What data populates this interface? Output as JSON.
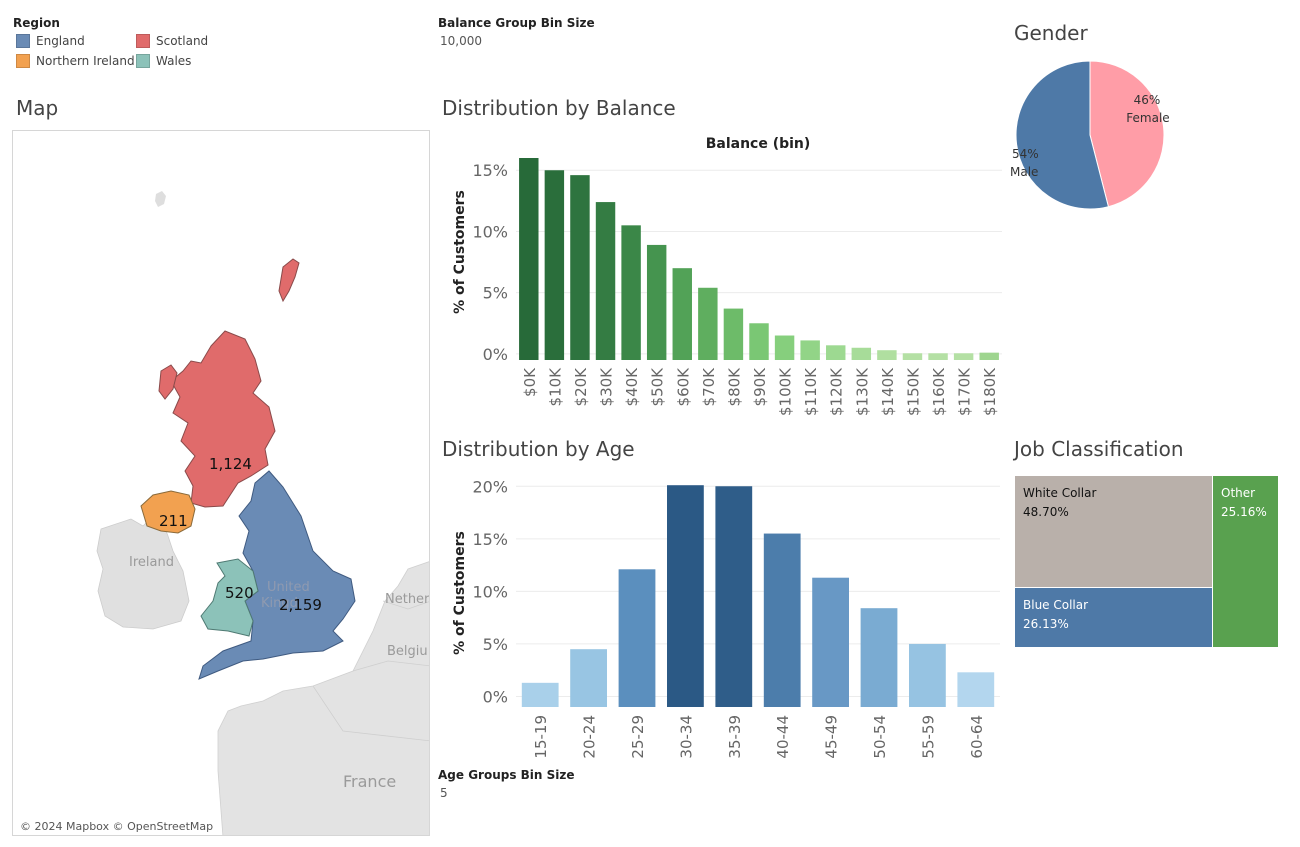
{
  "legend": {
    "title": "Region",
    "items": [
      {
        "label": "England",
        "color": "#6a8bb5"
      },
      {
        "label": "Scotland",
        "color": "#e06b6b"
      },
      {
        "label": "Northern Ireland",
        "color": "#f2a150"
      },
      {
        "label": "Wales",
        "color": "#8cc2b9"
      }
    ]
  },
  "params": {
    "balance_bin": {
      "title": "Balance Group Bin Size",
      "value": "10,000"
    },
    "age_bin": {
      "title": "Age Groups Bin Size",
      "value": "5"
    }
  },
  "map": {
    "title": "Map",
    "attribution": "© 2024 Mapbox © OpenStreetMap",
    "region_values": {
      "england": "2,159",
      "scotland": "1,124",
      "northern_ireland": "211",
      "wales": "520"
    },
    "place_labels": {
      "ireland": "Ireland",
      "uk_1": "United",
      "uk_2": "Kingd",
      "netherlands": "Nether",
      "belgium": "Belgiu",
      "france": "France"
    }
  },
  "balance_chart": {
    "title": "Distribution by Balance",
    "header": "Balance (bin)",
    "ylabel": "% of Customers"
  },
  "age_chart": {
    "title": "Distribution by Age",
    "ylabel": "% of Customers"
  },
  "gender": {
    "title": "Gender",
    "female_pct": "46%",
    "female_label": "Female",
    "male_pct": "54%",
    "male_label": "Male"
  },
  "job": {
    "title": "Job Classification",
    "cells": [
      {
        "label": "White Collar",
        "pct": "48.70%",
        "color": "#b9b0aa"
      },
      {
        "label": "Other",
        "pct": "25.16%",
        "color": "#59a14f"
      },
      {
        "label": "Blue Collar",
        "pct": "26.13%",
        "color": "#4e79a7"
      }
    ]
  },
  "chart_data": [
    {
      "type": "bar",
      "title": "Distribution by Balance",
      "xlabel": "Balance (bin)",
      "ylabel": "% of Customers",
      "categories": [
        "$0K",
        "$10K",
        "$20K",
        "$30K",
        "$40K",
        "$50K",
        "$60K",
        "$70K",
        "$80K",
        "$90K",
        "$100K",
        "$110K",
        "$120K",
        "$130K",
        "$140K",
        "$150K",
        "$160K",
        "$170K",
        "$180K"
      ],
      "values": [
        16.0,
        15.0,
        14.6,
        12.4,
        10.5,
        8.9,
        7.0,
        5.4,
        3.7,
        2.5,
        1.5,
        1.1,
        0.7,
        0.5,
        0.3,
        0.05,
        0.05,
        0.05,
        0.1
      ],
      "ylim": [
        -0.5,
        16
      ],
      "yticks": [
        "0%",
        "5%",
        "10%",
        "15%"
      ],
      "colors": [
        "#276a39",
        "#2a6e3b",
        "#2e743f",
        "#347c43",
        "#3b8748",
        "#45944f",
        "#52a257",
        "#5fae5f",
        "#6dbb69",
        "#7ac774",
        "#86cf7d",
        "#92d487",
        "#9dd991",
        "#a7dc99",
        "#b0dfa0",
        "#b4e0a4",
        "#b4e0a4",
        "#b4e0a4",
        "#9ed58f"
      ],
      "grid": true
    },
    {
      "type": "bar",
      "title": "Distribution by Age",
      "ylabel": "% of Customers",
      "categories": [
        "15-19",
        "20-24",
        "25-29",
        "30-34",
        "35-39",
        "40-44",
        "45-49",
        "50-54",
        "55-59",
        "60-64"
      ],
      "values": [
        1.3,
        4.5,
        12.1,
        20.1,
        20.0,
        15.5,
        11.3,
        8.4,
        5.0,
        2.3
      ],
      "ylim": [
        -1,
        20.5
      ],
      "yticks": [
        "0%",
        "5%",
        "10%",
        "15%",
        "20%"
      ],
      "colors": [
        "#a9d0ea",
        "#98c5e3",
        "#5b8fbe",
        "#2b5985",
        "#2f5d89",
        "#4c7dab",
        "#6898c5",
        "#7aabd2",
        "#96c3e2",
        "#b3d6ee"
      ],
      "grid": true
    },
    {
      "type": "pie",
      "title": "Gender",
      "labels": [
        "Female",
        "Male"
      ],
      "values": [
        46,
        54
      ],
      "colors": [
        "#ff9da7",
        "#4e79a7"
      ]
    },
    {
      "type": "table",
      "title": "Job Classification",
      "labels": [
        "White Collar",
        "Blue Collar",
        "Other"
      ],
      "values": [
        48.7,
        26.13,
        25.16
      ]
    }
  ]
}
